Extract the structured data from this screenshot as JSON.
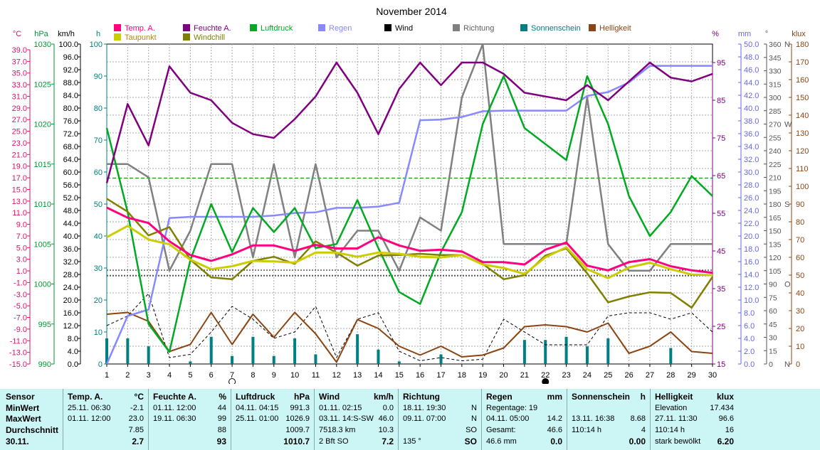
{
  "chart_data": {
    "type": "line",
    "title": "November 2014",
    "x": [
      1,
      2,
      3,
      4,
      5,
      6,
      7,
      8,
      9,
      10,
      11,
      12,
      13,
      14,
      15,
      16,
      17,
      18,
      19,
      20,
      21,
      22,
      23,
      24,
      25,
      26,
      27,
      28,
      29,
      30
    ],
    "axes": {
      "temp_c": {
        "unit": "°C",
        "ticks": [
          "39.0",
          "37.0",
          "35.0",
          "33.0",
          "31.0",
          "29.0",
          "27.0",
          "25.0",
          "23.0",
          "21.0",
          "19.0",
          "17.0",
          "15.0",
          "13.0",
          "11.0",
          "9.0",
          "7.0",
          "5.0",
          "3.0",
          "1.0",
          "-1.0",
          "-3.0",
          "-5.0",
          "-7.0",
          "-9.0",
          "-11.0",
          "-13.0",
          "-15.0"
        ],
        "color": "#e0106a"
      },
      "pressure_hpa": {
        "unit": "hPa",
        "ticks": [
          "1030",
          "1025",
          "1020",
          "1015",
          "1010",
          "1005",
          "1000",
          "995",
          "990"
        ],
        "color": "#009933"
      },
      "wind_kmh": {
        "unit": "km/h",
        "ticks": [
          "100.0",
          "96.0",
          "92.0",
          "88.0",
          "84.0",
          "80.0",
          "76.0",
          "72.0",
          "68.0",
          "64.0",
          "60.0",
          "56.0",
          "52.0",
          "48.0",
          "44.0",
          "40.0",
          "36.0",
          "32.0",
          "28.0",
          "24.0",
          "20.0",
          "16.0",
          "12.0",
          "8.0",
          "4.0",
          "0.0"
        ],
        "color": "#000000"
      },
      "sun_h": {
        "unit": "h",
        "ticks": [
          "100",
          "90",
          "80",
          "70",
          "60",
          "50",
          "40",
          "30",
          "20",
          "10",
          "0"
        ],
        "color": "#008080"
      },
      "humidity_pct": {
        "unit": "%",
        "ticks": [
          "95",
          "85",
          "75",
          "65",
          "55",
          "45",
          "35",
          "25",
          "15"
        ],
        "color": "#800080"
      },
      "rain_mm": {
        "unit": "mm",
        "ticks": [
          "50.0",
          "48.0",
          "46.0",
          "44.0",
          "42.0",
          "40.0",
          "38.0",
          "36.0",
          "34.0",
          "32.0",
          "30.0",
          "28.0",
          "26.0",
          "24.0",
          "22.0",
          "20.0",
          "18.0",
          "16.0",
          "14.0",
          "12.0",
          "10.0",
          "8.0",
          "6.0",
          "4.0",
          "2.0",
          "0.0"
        ],
        "color": "#6666ee"
      },
      "direction_deg": {
        "unit": "°",
        "ticks": [
          "360",
          "345",
          "330",
          "315",
          "300",
          "285",
          "270",
          "255",
          "240",
          "225",
          "210",
          "195",
          "180",
          "165",
          "150",
          "135",
          "120",
          "105",
          "90",
          "75",
          "60",
          "45",
          "30",
          "15",
          "0"
        ],
        "compass": [
          {
            "deg": 360,
            "label": "N"
          },
          {
            "deg": 270,
            "label": "W"
          },
          {
            "deg": 180,
            "label": "S"
          },
          {
            "deg": 90,
            "label": "O"
          },
          {
            "deg": 0,
            "label": "N"
          }
        ],
        "color": "#555555"
      },
      "light_klux": {
        "unit": "klux",
        "ticks": [
          "180",
          "170",
          "160",
          "150",
          "140",
          "130",
          "120",
          "110",
          "100",
          "90",
          "80",
          "70",
          "60",
          "50",
          "40",
          "30",
          "20",
          "10",
          "0"
        ],
        "color": "#8b4513"
      }
    },
    "legend": [
      {
        "name": "Temp. A.",
        "color": "#ff0080"
      },
      {
        "name": "Feuchte A.",
        "color": "#800080"
      },
      {
        "name": "Luftdruck",
        "color": "#00aa22"
      },
      {
        "name": "Regen",
        "color": "#8888ff"
      },
      {
        "name": "Wind",
        "color": "#000000"
      },
      {
        "name": "Richtung",
        "color": "#808080"
      },
      {
        "name": "Sonnenschein",
        "color": "#008080"
      },
      {
        "name": "Helligkeit",
        "color": "#8b4513"
      },
      {
        "name": "Taupunkt",
        "color": "#cccc00"
      },
      {
        "name": "Windchill",
        "color": "#808000"
      }
    ],
    "series": [
      {
        "name": "Temp. A.",
        "axis": "temp_c",
        "color": "#ff0080",
        "values": [
          11.4,
          9.7,
          8.8,
          5.7,
          3.4,
          2.4,
          3.5,
          5.0,
          5.0,
          4.1,
          5.1,
          4.5,
          4.5,
          6.4,
          5.0,
          4.1,
          4.3,
          4.0,
          2.2,
          2.2,
          1.8,
          4.3,
          5.5,
          1.6,
          0.8,
          2.2,
          2.7,
          1.5,
          0.8,
          0.4
        ]
      },
      {
        "name": "Taupunkt",
        "axis": "temp_c",
        "color": "#cccc00",
        "values": [
          6.4,
          8.3,
          6.0,
          5.2,
          2.6,
          1.0,
          1.5,
          2.4,
          2.3,
          2.1,
          3.8,
          3.8,
          3.1,
          3.8,
          3.6,
          3.1,
          3.0,
          3.4,
          1.8,
          1.2,
          0.2,
          3.0,
          4.7,
          1.0,
          -0.5,
          1.3,
          2.1,
          1.0,
          0.1,
          0.0
        ]
      },
      {
        "name": "Windchill",
        "axis": "temp_c",
        "color": "#808000",
        "values": [
          12.9,
          10.7,
          6.7,
          8.1,
          2.6,
          -0.4,
          -0.7,
          2.4,
          3.1,
          1.9,
          5.7,
          3.8,
          1.6,
          3.3,
          3.4,
          3.6,
          3.4,
          3.4,
          1.9,
          -0.7,
          0.0,
          3.3,
          4.5,
          0.3,
          -4.6,
          -3.6,
          -2.9,
          -3.0,
          -5.5,
          -0.3
        ]
      },
      {
        "name": "Feuchte A.",
        "axis": "humidity_pct",
        "values": [
          63,
          84,
          73,
          94,
          87,
          85,
          79,
          76,
          75,
          80,
          86,
          95,
          87,
          76,
          88,
          95,
          89,
          95,
          95,
          92,
          87,
          86,
          85,
          89,
          85,
          90,
          95,
          91,
          90,
          92
        ]
      },
      {
        "name": "Luftdruck",
        "axis": "pressure_hpa",
        "values": [
          1019.5,
          1009.0,
          995.0,
          991.5,
          1003.0,
          1010.0,
          1004.0,
          1009.5,
          1006.5,
          1009.5,
          1004.5,
          1005.0,
          1010.5,
          1004.5,
          999.0,
          997.5,
          1004.0,
          1009.0,
          1020.0,
          1026.0,
          1019.5,
          1017.5,
          1015.5,
          1026.0,
          1020.0,
          1011.0,
          1006.0,
          1009.0,
          1013.5,
          1011.0
        ]
      },
      {
        "name": "Regen",
        "axis": "rain_mm",
        "values": [
          0.0,
          7.5,
          8.5,
          22.8,
          23.0,
          23.0,
          23.0,
          23.0,
          23.2,
          23.6,
          23.7,
          24.4,
          24.4,
          24.6,
          25.2,
          38.1,
          38.2,
          38.6,
          39.5,
          39.6,
          39.6,
          39.6,
          39.6,
          41.9,
          42.5,
          44.0,
          46.6,
          46.6,
          46.6,
          46.6
        ]
      },
      {
        "name": "Richtung",
        "axis": "direction_deg",
        "values": [
          225,
          225,
          210,
          105,
          150,
          225,
          225,
          120,
          225,
          120,
          225,
          120,
          150,
          150,
          105,
          165,
          150,
          300,
          360,
          135,
          135,
          135,
          135,
          300,
          135,
          105,
          105,
          135,
          135,
          135
        ]
      },
      {
        "name": "Wind",
        "axis": "wind_kmh",
        "values": [
          12.0,
          15.0,
          22.0,
          2.0,
          3.0,
          10.0,
          18.0,
          14.0,
          8.0,
          10.0,
          18.0,
          2.0,
          14.0,
          16.0,
          4.0,
          1.0,
          2.0,
          1.0,
          1.5,
          14.0,
          10.0,
          6.0,
          6.0,
          6.0,
          15.0,
          16.0,
          16.0,
          14.0,
          16.0,
          10.0
        ]
      },
      {
        "name": "Helligkeit",
        "axis": "light_klux",
        "values": [
          28,
          29,
          24,
          7,
          11,
          29,
          11,
          28,
          15,
          29,
          17,
          1,
          25,
          20,
          10,
          5,
          10,
          4,
          5,
          9,
          21,
          22,
          21,
          18,
          23,
          6,
          10,
          18,
          7,
          6
        ]
      },
      {
        "name": "Sonnenschein",
        "axis": "sun_h",
        "values": [
          8.0,
          8.0,
          5.5,
          0,
          0.8,
          8.5,
          2.5,
          8.5,
          2.5,
          8.0,
          3.0,
          0,
          9.3,
          4.5,
          0.8,
          0,
          3.0,
          0,
          0,
          0,
          7.5,
          7.5,
          8.5,
          5.5,
          8.0,
          0,
          0,
          5.0,
          0,
          0
        ]
      }
    ],
    "grid": true
  },
  "table": {
    "row_labels": [
      "Sensor",
      "MinWert",
      "MaxWert",
      "Durchschnitt",
      "30.11."
    ],
    "columns": [
      {
        "title": "Temp. A.",
        "unit": "°C",
        "rows": [
          [
            "25.11.  06:30",
            "-2.1"
          ],
          [
            "01.11.  12:00",
            "23.0"
          ],
          [
            "",
            "7.85"
          ],
          [
            "",
            "2.7"
          ]
        ]
      },
      {
        "title": "Feuchte A.",
        "unit": "%",
        "rows": [
          [
            "01.11.  12:00",
            "44"
          ],
          [
            "19.11.  06:30",
            "99"
          ],
          [
            "",
            "88"
          ],
          [
            "",
            "93"
          ]
        ]
      },
      {
        "title": "Luftdruck",
        "unit": "hPa",
        "rows": [
          [
            "04.11.  04:15",
            "991.3"
          ],
          [
            "25.11.  01:00",
            "1026.9"
          ],
          [
            "",
            "1009.7"
          ],
          [
            "",
            "1010.7"
          ]
        ]
      },
      {
        "title": "Wind",
        "unit": "km/h",
        "rows": [
          [
            "01.11.  02:15",
            "0.0"
          ],
          [
            "03.11.  14:S-SW",
            "46.0"
          ],
          [
            "7518.3 km",
            "10.3"
          ],
          [
            "2 Bft SO",
            "7.2"
          ]
        ]
      },
      {
        "title": "Richtung",
        "unit": "",
        "rows": [
          [
            "18.11.  19:30",
            "N"
          ],
          [
            "09.11.  07:00",
            "N"
          ],
          [
            "",
            "SO"
          ],
          [
            "135 °",
            "SO"
          ]
        ]
      },
      {
        "title": "Regen",
        "unit": "mm",
        "rows": [
          [
            "Regentage: 19",
            ""
          ],
          [
            "04.11.  05:00",
            "14.2"
          ],
          [
            "Gesamt:",
            "46.6"
          ],
          [
            "46.6 mm",
            "0.0"
          ]
        ]
      },
      {
        "title": "Sonnenschein",
        "unit": "h",
        "rows": [
          [
            "",
            ""
          ],
          [
            "13.11.  16:38",
            "8.68"
          ],
          [
            "110:14 h",
            "4"
          ],
          [
            "",
            "0.00"
          ]
        ]
      },
      {
        "title": "Helligkeit",
        "unit": "klux",
        "rows": [
          [
            "Elevation",
            "17.434"
          ],
          [
            "27.11.  11:30",
            "96.6"
          ],
          [
            "110:14 h",
            "16"
          ],
          [
            "stark bewölkt",
            "6.20"
          ]
        ]
      }
    ]
  }
}
